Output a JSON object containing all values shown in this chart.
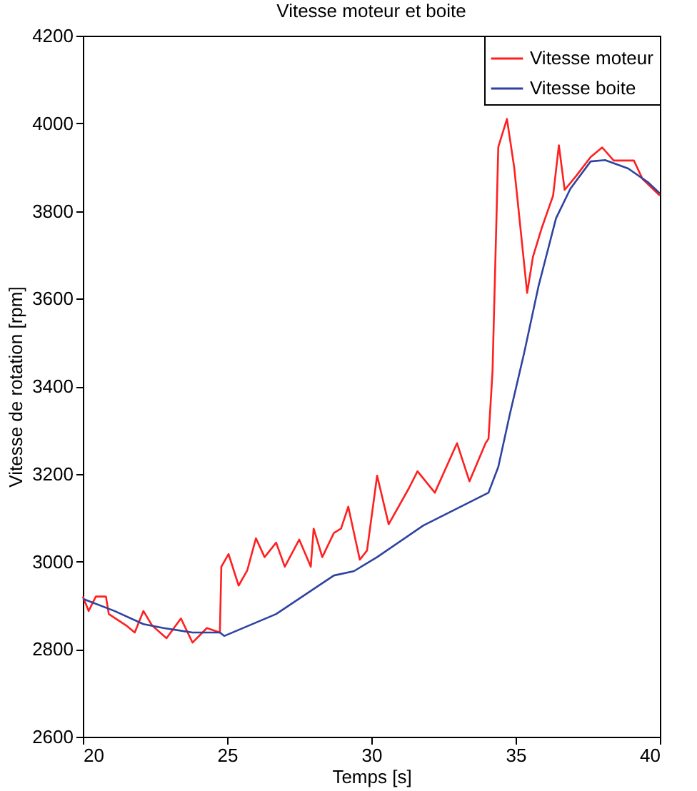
{
  "chart_data": {
    "type": "line",
    "title": "Vitesse moteur et boite",
    "xlabel": "Temps [s]",
    "ylabel": "Vitesse de rotation [rpm]",
    "xlim": [
      20,
      40
    ],
    "xticks": [
      20,
      25,
      30,
      35,
      40
    ],
    "ylim": [
      2600,
      4200
    ],
    "yticks": [
      2600,
      2800,
      3000,
      3200,
      3400,
      3600,
      3800,
      4000,
      4200
    ],
    "grid": false,
    "legend": "top right",
    "marker": "none",
    "line_style": "solid",
    "series": [
      {
        "name": "Vitesse moteur",
        "color": "#ff1f1f",
        "x": [
          20,
          20.2,
          20.45,
          20.8,
          20.9,
          21.5,
          21.8,
          22.1,
          22.4,
          22.9,
          23.4,
          23.8,
          24.3,
          24.75,
          24.8,
          25.05,
          25.4,
          25.7,
          26.0,
          26.3,
          26.7,
          27.0,
          27.5,
          27.9,
          28.0,
          28.3,
          28.7,
          28.95,
          29.2,
          29.6,
          29.85,
          30.2,
          30.6,
          31.3,
          31.6,
          32.2,
          32.97,
          33.4,
          33.96,
          34.06,
          34.2,
          34.4,
          34.7,
          34.95,
          35.4,
          35.6,
          35.9,
          36.3,
          36.5,
          36.7,
          37.1,
          37.6,
          38.0,
          38.4,
          39.1,
          39.4,
          40
        ],
        "values": [
          2920,
          2887,
          2920,
          2920,
          2880,
          2854,
          2838,
          2887,
          2854,
          2825,
          2870,
          2815,
          2848,
          2838,
          2988,
          3017,
          2945,
          2980,
          3053,
          3010,
          3043,
          2988,
          3050,
          2988,
          3075,
          3010,
          3065,
          3075,
          3125,
          3004,
          3025,
          3196,
          3085,
          3167,
          3206,
          3157,
          3270,
          3183,
          3270,
          3280,
          3434,
          3946,
          4010,
          3900,
          3613,
          3695,
          3760,
          3835,
          3950,
          3848,
          3880,
          3923,
          3945,
          3915,
          3915,
          3873,
          3835
        ]
      },
      {
        "name": "Vitesse boite",
        "color": "#2e43a0",
        "x": [
          20,
          21.1,
          22.1,
          22.8,
          23.8,
          24.75,
          24.9,
          26.7,
          28.7,
          29.4,
          30.2,
          31.8,
          34.06,
          34.4,
          34.8,
          35.3,
          35.8,
          36.4,
          36.9,
          37.6,
          38.1,
          38.9,
          39.6,
          40
        ],
        "values": [
          2915,
          2887,
          2857,
          2848,
          2838,
          2838,
          2830,
          2880,
          2968,
          2978,
          3010,
          3082,
          3157,
          3216,
          3336,
          3477,
          3630,
          3783,
          3851,
          3913,
          3916,
          3897,
          3865,
          3840
        ]
      }
    ]
  }
}
